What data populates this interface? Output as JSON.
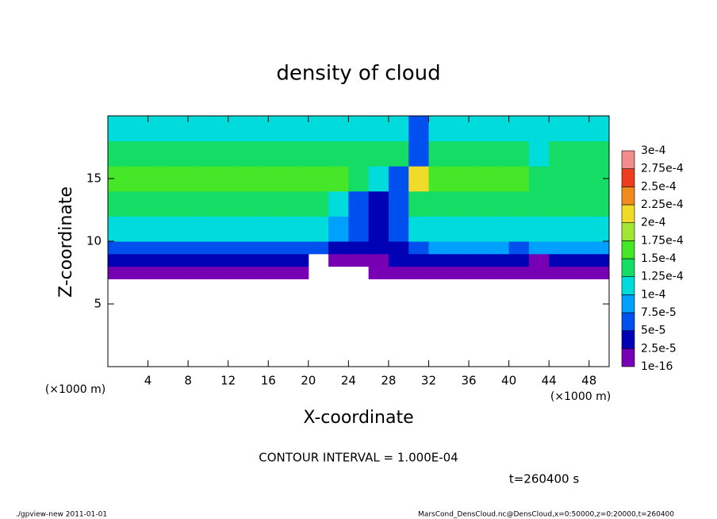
{
  "chart_data": {
    "type": "heatmap",
    "title": "density of cloud",
    "x_label": "X-coordinate",
    "y_label": "Z-coordinate",
    "x_unit_label": "(×1000 m)",
    "y_unit_label": "(×1000 m)",
    "xlim": [
      0,
      50
    ],
    "ylim": [
      0,
      20
    ],
    "xticks": [
      4,
      8,
      12,
      16,
      20,
      24,
      28,
      32,
      36,
      40,
      44,
      48
    ],
    "yticks": [
      5,
      10,
      15
    ],
    "x_edges": [
      0,
      2,
      4,
      6,
      8,
      10,
      12,
      14,
      16,
      18,
      20,
      22,
      24,
      26,
      28,
      30,
      32,
      34,
      36,
      38,
      40,
      42,
      44,
      46,
      48,
      50
    ],
    "z_edges": [
      0,
      7,
      8,
      9,
      10,
      12,
      14,
      16,
      18,
      20
    ],
    "values": [
      [
        null,
        null,
        null,
        null,
        null,
        null,
        null,
        null,
        null,
        null,
        null,
        null,
        null,
        null,
        null,
        null,
        null,
        null,
        null,
        null,
        null,
        null,
        null,
        null,
        null
      ],
      [
        1e-05,
        1e-05,
        1e-05,
        1e-05,
        1e-05,
        1e-05,
        1e-05,
        1e-05,
        1e-05,
        1e-05,
        null,
        null,
        null,
        1e-05,
        1e-05,
        1e-05,
        1e-05,
        1e-05,
        1e-05,
        1e-05,
        1e-05,
        1e-05,
        1e-05,
        1e-05,
        1e-05
      ],
      [
        3e-05,
        3e-05,
        3e-05,
        3e-05,
        3e-05,
        3e-05,
        3e-05,
        3e-05,
        3e-05,
        3e-05,
        null,
        2e-05,
        2e-05,
        2e-05,
        3e-05,
        4e-05,
        4e-05,
        4e-05,
        4e-05,
        4e-05,
        3e-05,
        2e-05,
        3e-05,
        3e-05,
        3e-05
      ],
      [
        7e-05,
        7e-05,
        7e-05,
        7e-05,
        7e-05,
        7e-05,
        7e-05,
        7e-05,
        7e-05,
        7e-05,
        6e-05,
        4e-05,
        3e-05,
        3e-05,
        4e-05,
        5e-05,
        8e-05,
        8e-05,
        8e-05,
        8e-05,
        6e-05,
        8e-05,
        8e-05,
        8e-05,
        8e-05
      ],
      [
        0.000115,
        0.000115,
        0.000115,
        0.000115,
        0.000115,
        0.000115,
        0.000115,
        0.000115,
        0.000115,
        0.000115,
        0.00011,
        8e-05,
        5e-05,
        4e-05,
        5e-05,
        0.00011,
        0.00012,
        0.00012,
        0.00012,
        0.00012,
        0.00012,
        0.00012,
        0.00012,
        0.00012,
        0.00012
      ],
      [
        0.00014,
        0.00014,
        0.00014,
        0.00014,
        0.00014,
        0.00014,
        0.00014,
        0.00014,
        0.00014,
        0.00014,
        0.00014,
        0.00012,
        6e-05,
        4e-05,
        6e-05,
        0.00014,
        0.000145,
        0.000145,
        0.000145,
        0.000145,
        0.000145,
        0.00013,
        0.00013,
        0.00013,
        0.00013
      ],
      [
        0.00015,
        0.00015,
        0.00015,
        0.00015,
        0.00015,
        0.00015,
        0.00015,
        0.00015,
        0.00015,
        0.00015,
        0.00015,
        0.00015,
        0.000135,
        0.00011,
        7e-05,
        0.00022,
        0.00015,
        0.00015,
        0.00015,
        0.00015,
        0.00015,
        0.00013,
        0.000135,
        0.000135,
        0.000135
      ],
      [
        0.000145,
        0.000145,
        0.000145,
        0.000145,
        0.000145,
        0.000145,
        0.000145,
        0.000145,
        0.000145,
        0.000145,
        0.000145,
        0.000145,
        0.000145,
        0.00013,
        0.00013,
        6e-05,
        0.000145,
        0.000145,
        0.000145,
        0.000145,
        0.000145,
        0.00012,
        0.000135,
        0.000135,
        0.000135
      ],
      [
        0.00012,
        0.00012,
        0.00012,
        0.00012,
        0.00012,
        0.00012,
        0.00012,
        0.00012,
        0.00012,
        0.00012,
        0.00012,
        0.00012,
        0.00012,
        0.00012,
        0.00012,
        5e-05,
        0.00012,
        0.00012,
        0.00012,
        0.00012,
        0.00012,
        0.00012,
        0.00012,
        0.00012,
        0.00012
      ]
    ],
    "colorbar": {
      "levels": [
        {
          "value": 1e-16,
          "label": "1e-16"
        },
        {
          "value": 2.5e-05,
          "label": "2.5e-5"
        },
        {
          "value": 5e-05,
          "label": "5e-5"
        },
        {
          "value": 7.5e-05,
          "label": "7.5e-5"
        },
        {
          "value": 0.0001,
          "label": "1e-4"
        },
        {
          "value": 0.000125,
          "label": "1.25e-4"
        },
        {
          "value": 0.00015,
          "label": "1.5e-4"
        },
        {
          "value": 0.000175,
          "label": "1.75e-4"
        },
        {
          "value": 0.0002,
          "label": "2e-4"
        },
        {
          "value": 0.000225,
          "label": "2.25e-4"
        },
        {
          "value": 0.00025,
          "label": "2.5e-4"
        },
        {
          "value": 0.000275,
          "label": "2.75e-4"
        },
        {
          "value": 0.0003,
          "label": "3e-4"
        }
      ],
      "colors": [
        "#7800b4",
        "#0000b4",
        "#0050f0",
        "#00a0ff",
        "#00dcdc",
        "#14dc64",
        "#46e628",
        "#a0e632",
        "#f0dc28",
        "#f08c1e",
        "#f03c1e",
        "#f08c8c"
      ]
    },
    "contour_interval": "CONTOUR INTERVAL = 1.000E-04",
    "time_label": "t=260400 s",
    "footer_left": "./gpview-new  2011-01-01",
    "footer_right": "MarsCond_DensCloud.nc@DensCloud,x=0:50000,z=0:20000,t=260400"
  }
}
